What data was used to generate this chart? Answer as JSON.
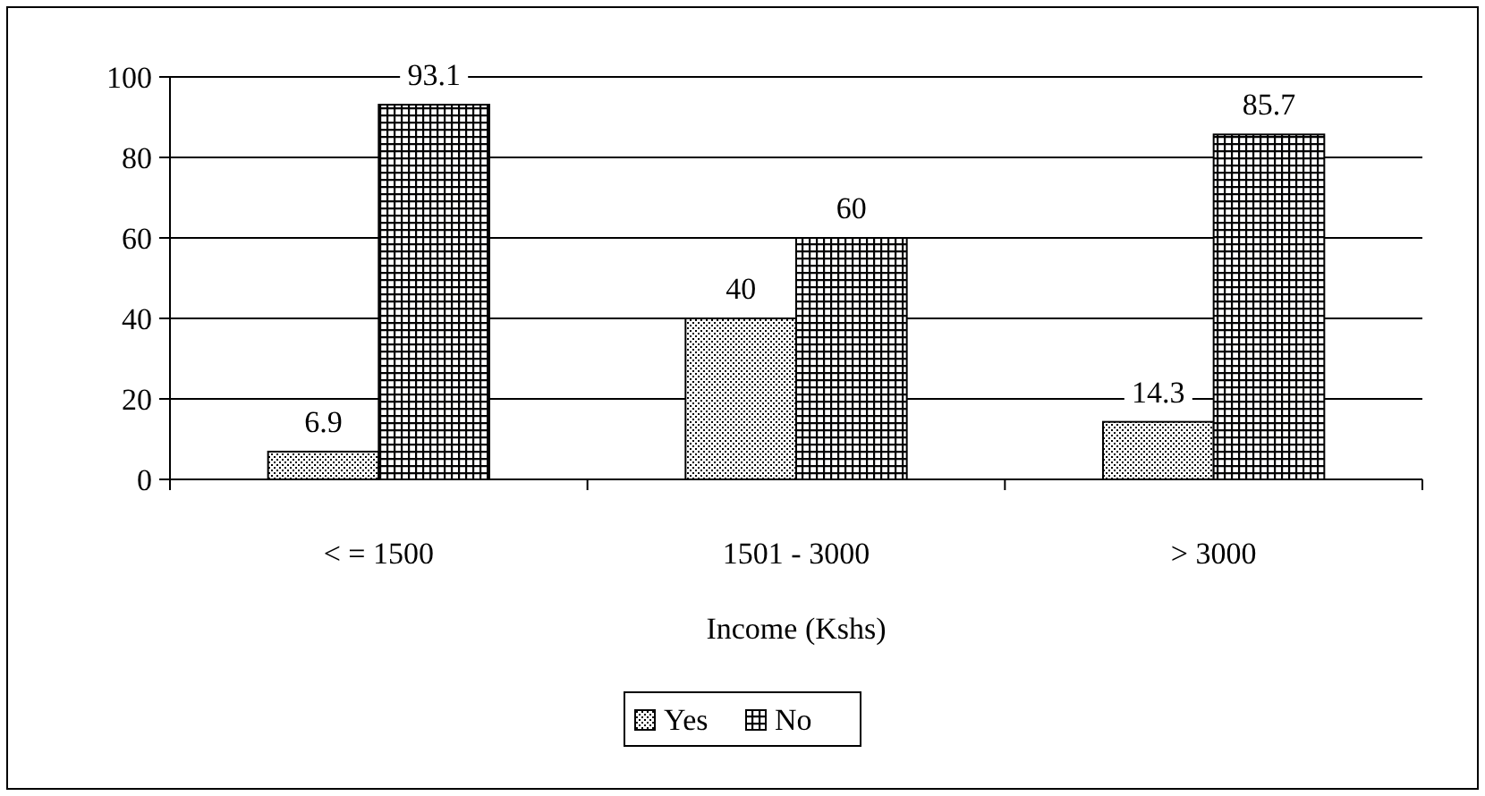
{
  "chart_data": {
    "type": "bar",
    "xlabel": "Income (Kshs)",
    "categories": [
      "< = 1500",
      "1501 - 3000",
      "> 3000"
    ],
    "series": [
      {
        "name": "Yes",
        "color": "#000000",
        "values": [
          6.9,
          40,
          14.3
        ]
      },
      {
        "name": "No",
        "color": "#000001",
        "values": [
          93.1,
          60,
          85.7
        ]
      }
    ],
    "ylim": [
      0,
      100
    ],
    "yticks": [
      0,
      20,
      40,
      60,
      80,
      100
    ],
    "grid": "y",
    "legend": "bottom",
    "data_labels": true
  }
}
